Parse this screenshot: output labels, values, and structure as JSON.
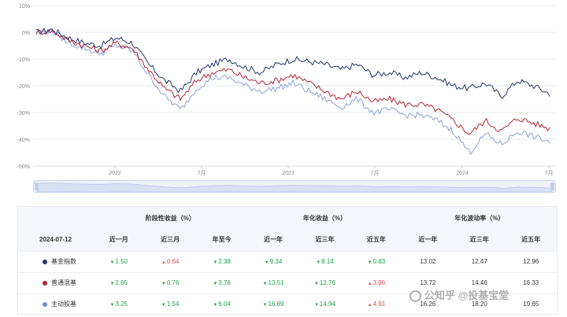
{
  "chart_data": {
    "type": "line",
    "ylim": [
      -50,
      10
    ],
    "y_ticks": [
      "10%",
      "0%",
      "-10%",
      "-20%",
      "-30%",
      "-40%",
      "-50%"
    ],
    "x_ticks": [
      "2022",
      "7月",
      "2023",
      "7月",
      "2024",
      "7月"
    ],
    "grid": true,
    "series": [
      {
        "name": "基金指数",
        "color": "#24346b",
        "values": [
          0,
          1,
          -2,
          -4,
          -5,
          -2,
          -4,
          -12,
          -18,
          -22,
          -15,
          -12,
          -10,
          -13,
          -15,
          -12,
          -10,
          -11,
          -12,
          -14,
          -12,
          -16,
          -15,
          -17,
          -15,
          -17,
          -20,
          -21,
          -19,
          -24,
          -18,
          -20,
          -23
        ]
      },
      {
        "name": "普通混基",
        "color": "#b22535",
        "values": [
          0,
          0.5,
          -3,
          -5,
          -7,
          -4,
          -6,
          -14,
          -21,
          -25,
          -18,
          -15,
          -14,
          -17,
          -19,
          -18,
          -16,
          -19,
          -22,
          -25,
          -22,
          -26,
          -25,
          -27,
          -27,
          -29,
          -33,
          -38,
          -33,
          -37,
          -32,
          -34,
          -36
        ]
      },
      {
        "name": "主动股基",
        "color": "#8da0d8",
        "values": [
          0,
          0.5,
          -4,
          -6,
          -8,
          -5,
          -7,
          -16,
          -24,
          -29,
          -21,
          -17,
          -17,
          -20,
          -22,
          -21,
          -19,
          -22,
          -25,
          -28,
          -25,
          -30,
          -29,
          -31,
          -31,
          -33,
          -37,
          -45,
          -38,
          -42,
          -37,
          -39,
          -41
        ]
      }
    ]
  },
  "table": {
    "group_headers": {
      "stage": "阶段性收益（%）",
      "annual": "年化收益（%）",
      "vol": "年化波动率（%）"
    },
    "date": "2024-07-12",
    "columns": [
      "近一月",
      "近三月",
      "年至今",
      "近一年",
      "近三年",
      "近五年",
      "近一年",
      "近三年",
      "近五年"
    ],
    "rows": [
      {
        "name": "基金指数",
        "color": "#24346b",
        "cells": [
          "1.50",
          "0.64",
          "2.38",
          "9.34",
          "8.14",
          "0.83",
          "13.02",
          "12.47",
          "12.96"
        ],
        "signs": [
          "down",
          "up",
          "down",
          "down",
          "down",
          "down",
          "plain",
          "plain",
          "plain"
        ]
      },
      {
        "name": "普通混基",
        "color": "#b22535",
        "cells": [
          "2.65",
          "0.76",
          "3.76",
          "13.51",
          "12.76",
          "3.86",
          "13.72",
          "14.46",
          "16.33"
        ],
        "signs": [
          "down",
          "down",
          "down",
          "down",
          "down",
          "up",
          "plain",
          "plain",
          "plain"
        ]
      },
      {
        "name": "主动股基",
        "color": "#6f8ad6",
        "cells": [
          "3.25",
          "1.54",
          "6.04",
          "16.69",
          "14.94",
          "4.91",
          "16.26",
          "18.20",
          "19.65"
        ],
        "signs": [
          "down",
          "down",
          "down",
          "down",
          "down",
          "up",
          "plain",
          "plain",
          "plain"
        ]
      }
    ]
  },
  "watermark": "公知乎 @投基宝堂"
}
